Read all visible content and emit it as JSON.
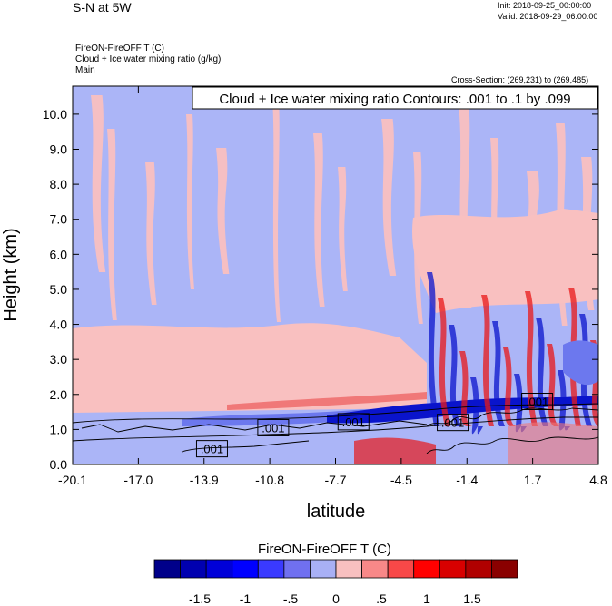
{
  "header": {
    "title_left": "S-N at 5W",
    "init": "Init: 2018-09-25_00:00:00",
    "valid": "Valid: 2018-09-29_06:00:00",
    "var_line1": "FireON-FireOFF T   (C)",
    "var_line2": "Cloud + Ice water mixing ratio   (g/kg)",
    "var_line3": "Main",
    "cross_section": "Cross-Section: (269,231) to (269,485)"
  },
  "chart_data": {
    "type": "heatmap",
    "title": "Cloud + Ice water mixing ratio Contours: .001 to .1 by .099",
    "xlabel": "latitude",
    "ylabel": "Height (km)",
    "xlim": [
      -20.1,
      4.8
    ],
    "ylim": [
      0.0,
      10.8
    ],
    "x_ticks": [
      "-20.1",
      "-17.0",
      "-13.9",
      "-10.8",
      "-7.7",
      "-4.5",
      "-1.4",
      "1.7",
      "4.8"
    ],
    "y_ticks": [
      "0.0",
      "1.0",
      "2.0",
      "3.0",
      "4.0",
      "5.0",
      "6.0",
      "7.0",
      "8.0",
      "9.0",
      "10.0"
    ],
    "y_tick_values": [
      0,
      1,
      2,
      3,
      4,
      5,
      6,
      7,
      8,
      9,
      10
    ],
    "contour_labels": [
      {
        "text": ".001",
        "x": -13.5,
        "y": 0.45
      },
      {
        "text": ".001",
        "x": -10.6,
        "y": 1.05
      },
      {
        "text": ".001",
        "x": -6.8,
        "y": 1.22
      },
      {
        "text": ".001",
        "x": -2.1,
        "y": 1.2
      },
      {
        "text": ".001",
        "x": 1.9,
        "y": 1.8
      }
    ],
    "colorbar": {
      "title": "FireON-FireOFF T  (C)",
      "labels": [
        "-1.5",
        "-1",
        "-.5",
        "0",
        ".5",
        "1",
        "1.5"
      ],
      "label_values": [
        -1.5,
        -1,
        -0.5,
        0,
        0.5,
        1,
        1.5
      ],
      "min": -2.0,
      "max": 2.0,
      "colors": [
        "#00008a",
        "#0000b0",
        "#0000d8",
        "#0000ff",
        "#3a3aff",
        "#7070f0",
        "#a8b0f5",
        "#f8c0c0",
        "#f88888",
        "#f84848",
        "#ff0000",
        "#d80000",
        "#b00000",
        "#8a0000"
      ]
    },
    "field_colors": {
      "light_blue": "#abb5f7",
      "light_pink": "#f9c0c0",
      "mid_blue": "#6c78ee",
      "deep_blue": "#0a14cc",
      "mid_red": "#f07878",
      "deep_red": "#e81818"
    }
  }
}
